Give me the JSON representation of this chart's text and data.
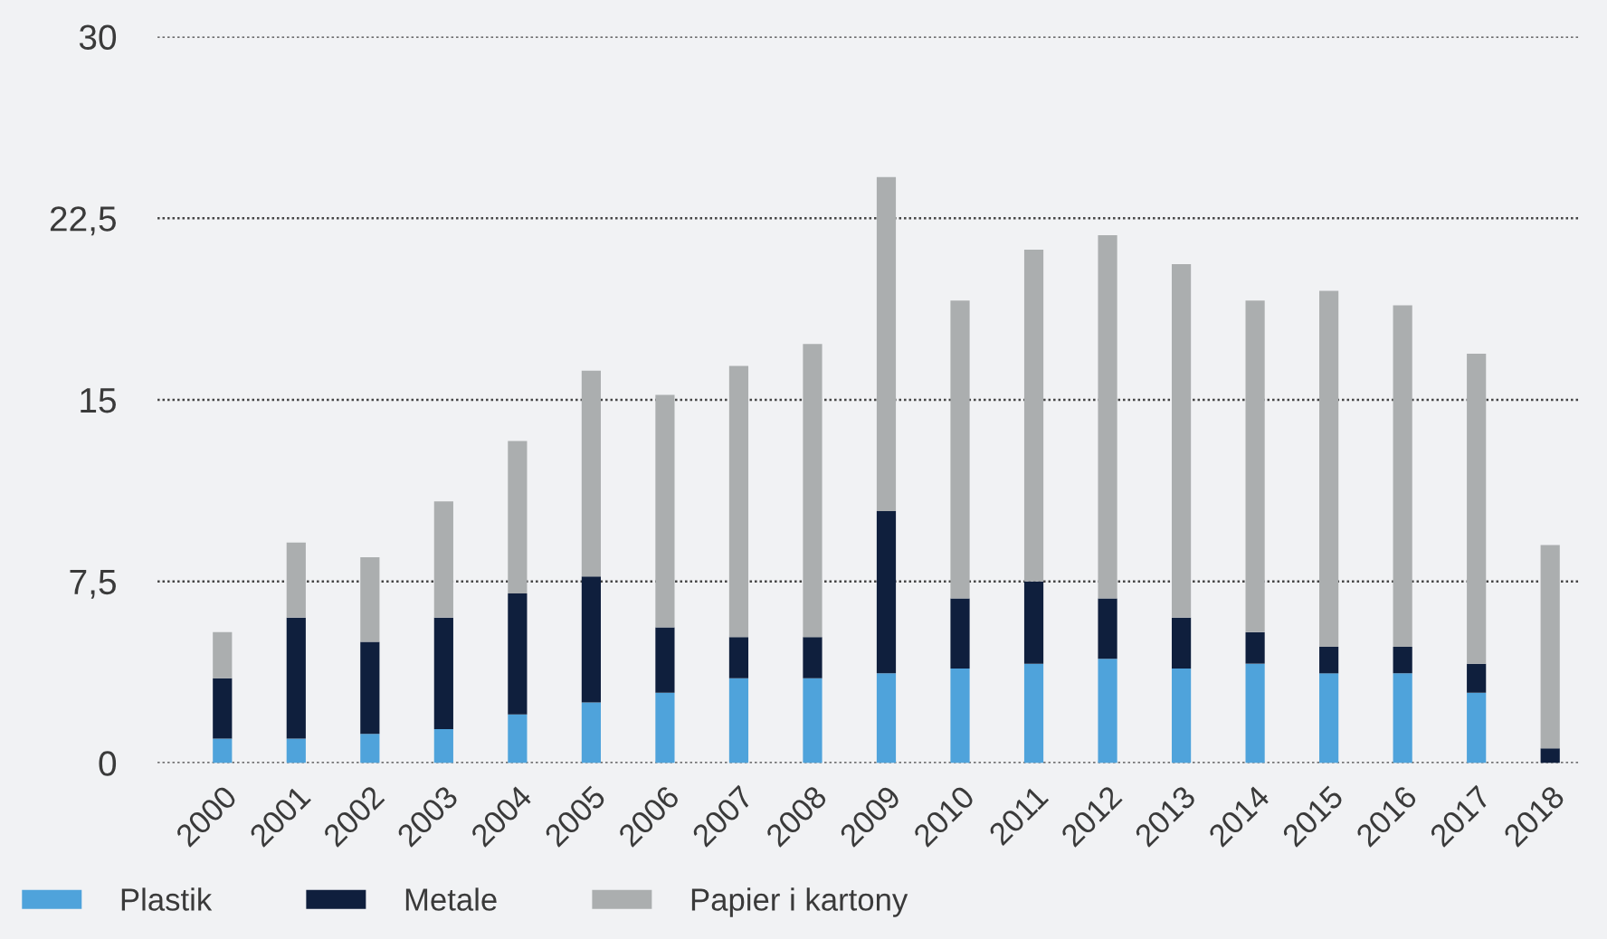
{
  "chart_data": {
    "type": "bar",
    "stacked": true,
    "categories": [
      "2000",
      "2001",
      "2002",
      "2003",
      "2004",
      "2005",
      "2006",
      "2007",
      "2008",
      "2009",
      "2010",
      "2011",
      "2012",
      "2013",
      "2014",
      "2015",
      "2016",
      "2017",
      "2018"
    ],
    "series": [
      {
        "name": "Plastik",
        "color": "#4fa3db",
        "values": [
          1.0,
          1.0,
          1.2,
          1.4,
          2.0,
          2.5,
          2.9,
          3.5,
          3.5,
          3.7,
          3.9,
          4.1,
          4.3,
          3.9,
          4.1,
          3.7,
          3.7,
          2.9,
          null
        ]
      },
      {
        "name": "Metale",
        "color": "#0f1f3d",
        "values": [
          2.5,
          5.0,
          3.8,
          4.6,
          5.0,
          5.2,
          2.7,
          1.7,
          1.7,
          6.7,
          2.9,
          3.4,
          2.5,
          2.1,
          1.3,
          1.1,
          1.1,
          1.2,
          0.6
        ]
      },
      {
        "name": "Papier i kartony",
        "color": "#abaeaf",
        "values": [
          1.9,
          3.1,
          3.5,
          4.8,
          6.3,
          8.5,
          9.6,
          11.2,
          12.1,
          13.8,
          12.3,
          13.7,
          15.0,
          14.6,
          13.7,
          14.7,
          14.1,
          12.8,
          8.4
        ]
      }
    ],
    "ylim": [
      0,
      30
    ],
    "yticks": [
      0,
      {
        "value": 7.5,
        "label": "7,5"
      },
      15,
      {
        "value": 22.5,
        "label": "22,5"
      },
      30
    ],
    "grid": "y",
    "legend": "bottom left"
  }
}
